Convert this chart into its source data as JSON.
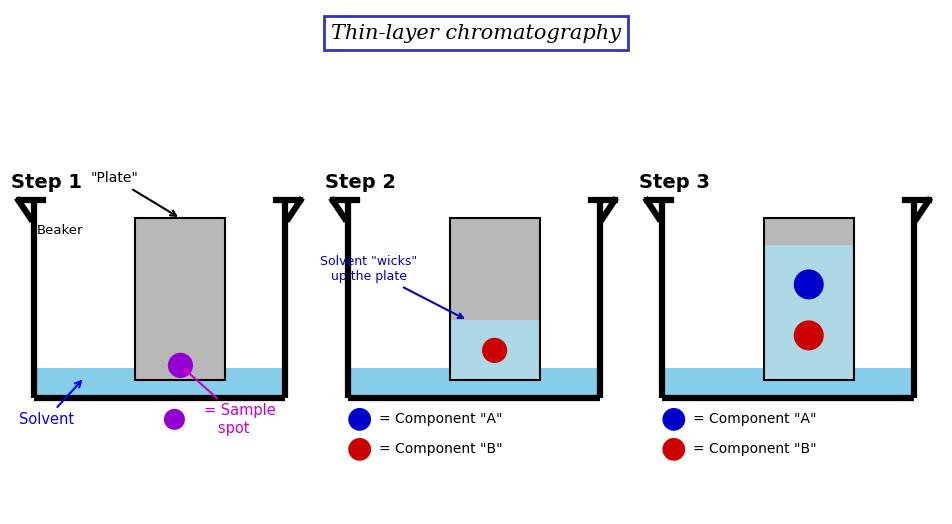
{
  "title": "Thin-layer chromatography",
  "title_fontsize": 15,
  "step_labels": [
    "Step 1",
    "Step 2",
    "Step 3"
  ],
  "bg_color": "#ffffff",
  "beaker_line_color": "#000000",
  "solvent_color": "#87CEEB",
  "plate_color": "#b8b8b8",
  "plate_wet_color": "#add8e6",
  "sample_color": "#9400d3",
  "component_a_color": "#0000cc",
  "component_b_color": "#cc0000",
  "annotation_color": "#0000cc",
  "solvent_label_color": "#0000ff",
  "sample_label_color": "#cc00cc",
  "panel_border_color": "#000000",
  "beaker_lw": 4.5,
  "plate_lw": 1.5
}
